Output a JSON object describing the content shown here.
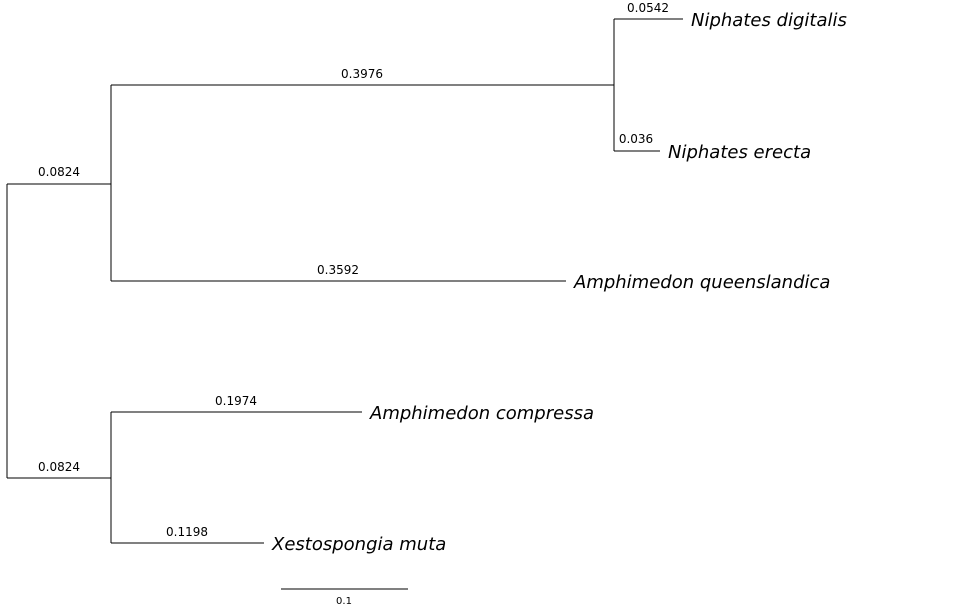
{
  "tree": {
    "type": "phylogram",
    "scale_bar": {
      "value": 0.1,
      "label": "0.1"
    },
    "clades": [
      {
        "id": "clade-a",
        "branch_length": 0.0824,
        "branch_label": "0.0824",
        "children": [
          {
            "id": "clade-niphates",
            "branch_length": 0.3976,
            "branch_label": "0.3976",
            "children": [
              {
                "id": "niphates-digitalis",
                "taxon": "Niphates digitalis",
                "branch_length": 0.0542,
                "branch_label": "0.0542"
              },
              {
                "id": "niphates-erecta",
                "taxon": "Niphates erecta",
                "branch_length": 0.036,
                "branch_label": "0.036"
              }
            ]
          },
          {
            "id": "amphimedon-queenslandica",
            "taxon": "Amphimedon queenslandica",
            "branch_length": 0.3592,
            "branch_label": "0.3592"
          }
        ]
      },
      {
        "id": "clade-b",
        "branch_length": 0.0824,
        "branch_label": "0.0824",
        "children": [
          {
            "id": "amphimedon-compressa",
            "taxon": "Amphimedon compressa",
            "branch_length": 0.1974,
            "branch_label": "0.1974"
          },
          {
            "id": "xestospongia-muta",
            "taxon": "Xestospongia muta",
            "branch_length": 0.1198,
            "branch_label": "0.1198"
          }
        ]
      }
    ]
  }
}
